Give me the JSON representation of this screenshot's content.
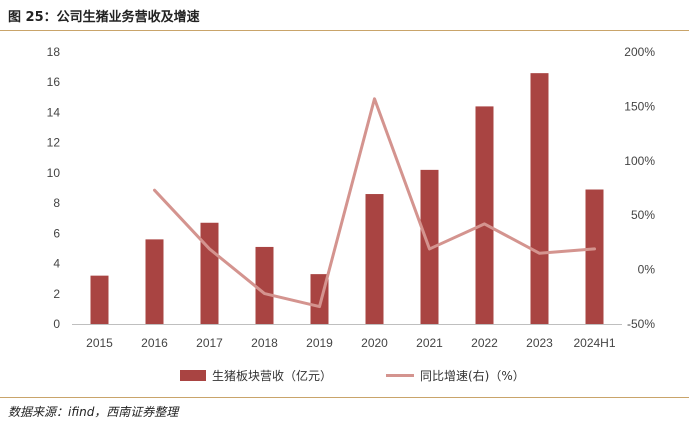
{
  "figure": {
    "title": "图 25：公司生猪业务营收及增速",
    "source": "数据来源：ifind，西南证券整理"
  },
  "colors": {
    "bar": "#a94442",
    "line": "#d4948f",
    "rule": "#c9a46a",
    "axis": "#bfbfbf"
  },
  "chart_data": {
    "type": "bar",
    "categories": [
      "2015",
      "2016",
      "2017",
      "2018",
      "2019",
      "2020",
      "2021",
      "2022",
      "2023",
      "2024H1"
    ],
    "series": [
      {
        "name": "生猪板块营收（亿元）",
        "type": "bar",
        "axis": "left",
        "values": [
          3.2,
          5.6,
          6.7,
          5.1,
          3.3,
          8.6,
          10.2,
          14.4,
          16.6,
          8.9
        ]
      },
      {
        "name": "同比增速(右)（%）",
        "type": "line",
        "axis": "right",
        "values": [
          null,
          73,
          19,
          -22,
          -34,
          157,
          19,
          42,
          15,
          19
        ]
      }
    ],
    "y_left": {
      "ylim": [
        0,
        18
      ],
      "ticks": [
        0,
        2,
        4,
        6,
        8,
        10,
        12,
        14,
        16,
        18
      ]
    },
    "y_right": {
      "ylim": [
        -50,
        200
      ],
      "ticks": [
        -50,
        0,
        50,
        100,
        150,
        200
      ],
      "tick_labels": [
        "-50%",
        "0%",
        "50%",
        "100%",
        "150%",
        "200%"
      ]
    },
    "legend_position": "bottom",
    "grid": false
  }
}
